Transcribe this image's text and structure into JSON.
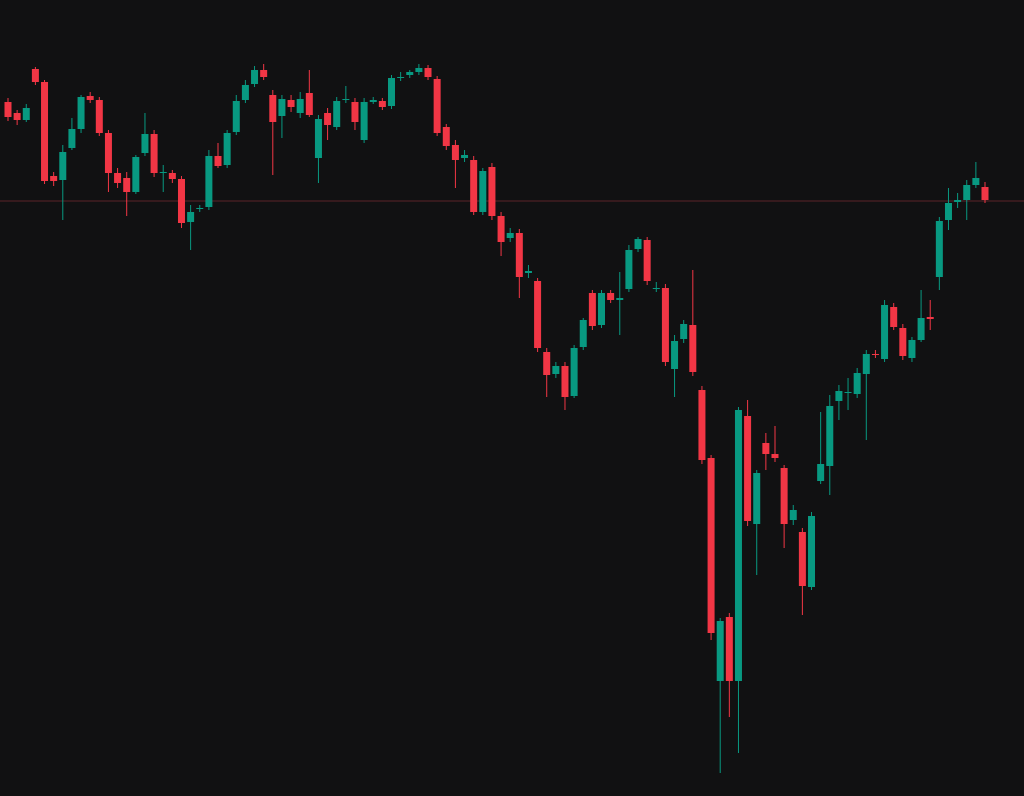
{
  "chart_data": {
    "type": "candlestick",
    "up_color": "#089981",
    "down_color": "#f23645",
    "price_line": {
      "value": 595,
      "color": "#5c2328"
    },
    "ylim": [
      0,
      796
    ],
    "open": [
      694,
      683,
      676,
      727,
      714,
      620,
      616,
      648,
      667,
      700,
      696,
      663,
      623,
      618,
      604,
      643,
      662,
      623,
      623,
      617,
      574,
      587,
      589,
      640,
      631,
      664,
      696,
      712,
      726,
      701,
      680,
      696,
      683,
      703,
      638,
      683,
      669,
      696,
      694,
      656,
      694,
      695,
      690,
      718,
      721,
      724,
      728,
      717,
      669,
      651,
      638,
      636,
      584,
      629,
      580,
      558,
      563,
      523,
      515,
      444,
      422,
      430,
      400,
      449,
      503,
      471,
      503,
      496,
      507,
      547,
      556,
      507,
      508,
      427,
      457,
      471,
      406,
      338,
      115,
      179,
      115,
      380,
      272,
      353,
      342,
      328,
      276,
      264,
      209,
      315,
      330,
      395,
      403,
      402,
      422,
      442,
      437,
      489,
      468,
      438,
      456,
      479,
      519,
      576,
      594,
      596,
      611,
      609
    ],
    "high": [
      698,
      686,
      692,
      729,
      716,
      624,
      651,
      678,
      701,
      704,
      699,
      666,
      628,
      624,
      641,
      683,
      666,
      631,
      626,
      620,
      591,
      591,
      646,
      653,
      666,
      701,
      716,
      730,
      732,
      706,
      701,
      701,
      704,
      726,
      681,
      688,
      699,
      710,
      698,
      698,
      699,
      698,
      721,
      724,
      726,
      732,
      731,
      720,
      672,
      656,
      646,
      640,
      628,
      633,
      584,
      568,
      567,
      531,
      518,
      448,
      434,
      434,
      451,
      478,
      506,
      506,
      506,
      524,
      551,
      559,
      559,
      514,
      512,
      461,
      476,
      526,
      410,
      341,
      178,
      183,
      389,
      396,
      326,
      363,
      370,
      331,
      291,
      268,
      284,
      384,
      401,
      411,
      418,
      428,
      446,
      446,
      496,
      493,
      472,
      459,
      506,
      496,
      579,
      608,
      603,
      616,
      634,
      614
    ],
    "low": [
      675,
      671,
      674,
      711,
      612,
      610,
      576,
      646,
      663,
      693,
      660,
      604,
      608,
      580,
      602,
      640,
      619,
      604,
      613,
      568,
      546,
      584,
      586,
      628,
      628,
      661,
      693,
      709,
      716,
      621,
      658,
      684,
      678,
      679,
      613,
      656,
      666,
      693,
      666,
      653,
      692,
      686,
      687,
      715,
      718,
      721,
      716,
      660,
      646,
      608,
      634,
      581,
      581,
      576,
      540,
      554,
      498,
      518,
      444,
      399,
      418,
      386,
      398,
      446,
      466,
      468,
      493,
      461,
      504,
      544,
      511,
      504,
      430,
      399,
      453,
      420,
      332,
      156,
      23,
      79,
      43,
      270,
      221,
      326,
      334,
      248,
      271,
      181,
      206,
      312,
      301,
      376,
      386,
      398,
      356,
      438,
      434,
      466,
      436,
      434,
      454,
      466,
      506,
      566,
      588,
      576,
      608,
      593
    ],
    "close": [
      679,
      676,
      688,
      714,
      615,
      615,
      644,
      667,
      699,
      696,
      663,
      623,
      613,
      604,
      639,
      662,
      623,
      624,
      617,
      573,
      584,
      588,
      640,
      630,
      663,
      695,
      711,
      726,
      719,
      674,
      697,
      689,
      697,
      681,
      677,
      671,
      695,
      697,
      674,
      694,
      696,
      689,
      718,
      719,
      724,
      728,
      719,
      663,
      650,
      636,
      641,
      584,
      625,
      580,
      554,
      563,
      519,
      525,
      448,
      421,
      430,
      399,
      448,
      476,
      470,
      503,
      496,
      498,
      546,
      557,
      515,
      508,
      434,
      455,
      472,
      424,
      336,
      163,
      175,
      115,
      386,
      275,
      323,
      342,
      338,
      272,
      286,
      210,
      280,
      332,
      390,
      405,
      404,
      423,
      442,
      441,
      491,
      469,
      440,
      456,
      478,
      477,
      575,
      593,
      596,
      611,
      618,
      596
    ]
  }
}
